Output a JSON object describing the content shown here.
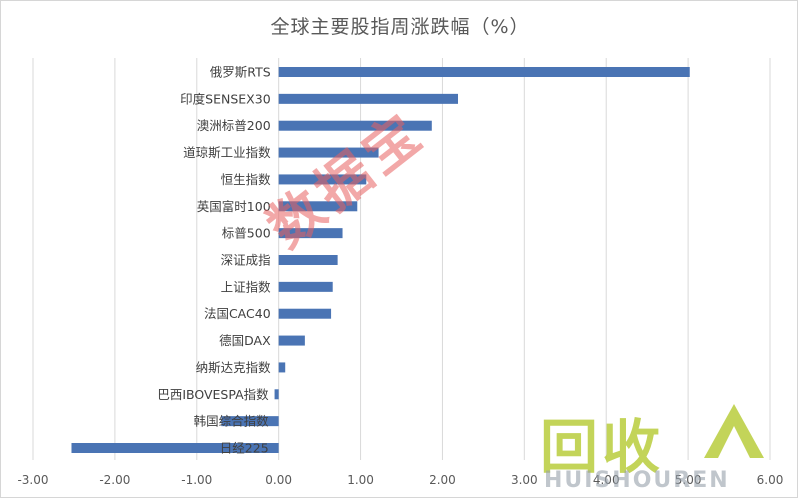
{
  "title": "全球主要股指周涨跌幅（%）",
  "watermark": "数据宝",
  "logo": {
    "cn": "回收",
    "en": "HUISHOUREN"
  },
  "colors": {
    "bar": "#4a74b4",
    "grid": "#d9d9d9",
    "watermark": "#e86060",
    "logo": "#b8cd3c"
  },
  "chart_data": {
    "type": "bar",
    "orientation": "horizontal",
    "title": "全球主要股指周涨跌幅（%）",
    "xlabel": "",
    "ylabel": "",
    "xlim": [
      -3,
      6
    ],
    "xticks": [
      "-3.00",
      "-2.00",
      "-1.00",
      "0.00",
      "1.00",
      "2.00",
      "3.00",
      "4.00",
      "5.00",
      "6.00"
    ],
    "grid": "vertical",
    "categories": [
      "俄罗斯RTS",
      "印度SENSEX30",
      "澳洲标普200",
      "道琼斯工业指数",
      "恒生指数",
      "英国富时100",
      "标普500",
      "深证成指",
      "上证指数",
      "法国CAC40",
      "德国DAX",
      "纳斯达克指数",
      "巴西IBOVESPA指数",
      "韩国综合指数",
      "日经225"
    ],
    "values": [
      5.02,
      2.19,
      1.87,
      1.22,
      1.07,
      0.96,
      0.78,
      0.72,
      0.66,
      0.64,
      0.32,
      0.08,
      -0.05,
      -0.7,
      -2.53
    ]
  }
}
